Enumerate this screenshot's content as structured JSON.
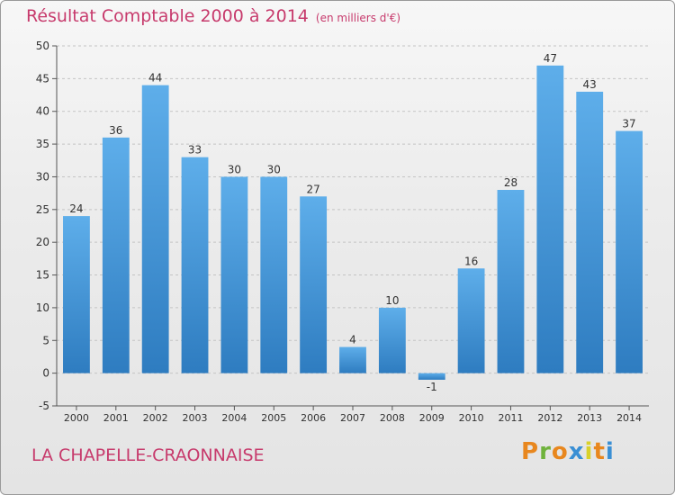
{
  "header": {
    "title": "Résultat Comptable 2000 à 2014",
    "unit": "(en milliers d'€)"
  },
  "footer": {
    "commune": "LA CHAPELLE-CRAONNAISE",
    "logo": [
      "P",
      "r",
      "o",
      "x",
      "i",
      "t",
      "i"
    ],
    "logo_colors": [
      "#e8871e",
      "#6fb23c",
      "#e8871e",
      "#3a8fd4",
      "#d9d12a",
      "#e8871e",
      "#3a8fd4"
    ]
  },
  "colors": {
    "bar_top": "#5eaeea",
    "bar_bottom": "#2e7cc0",
    "title": "#c73a6c"
  },
  "chart_data": {
    "type": "bar",
    "title": "Résultat Comptable 2000 à 2014",
    "categories": [
      "2000",
      "2001",
      "2002",
      "2003",
      "2004",
      "2005",
      "2006",
      "2007",
      "2008",
      "2009",
      "2010",
      "2011",
      "2012",
      "2013",
      "2014"
    ],
    "values": [
      24,
      36,
      44,
      33,
      30,
      30,
      27,
      4,
      10,
      -1,
      16,
      28,
      47,
      43,
      37
    ],
    "ylim": [
      -5,
      50
    ],
    "yticks": [
      -5,
      0,
      5,
      10,
      15,
      20,
      25,
      30,
      35,
      40,
      45,
      50
    ],
    "grid": true
  }
}
